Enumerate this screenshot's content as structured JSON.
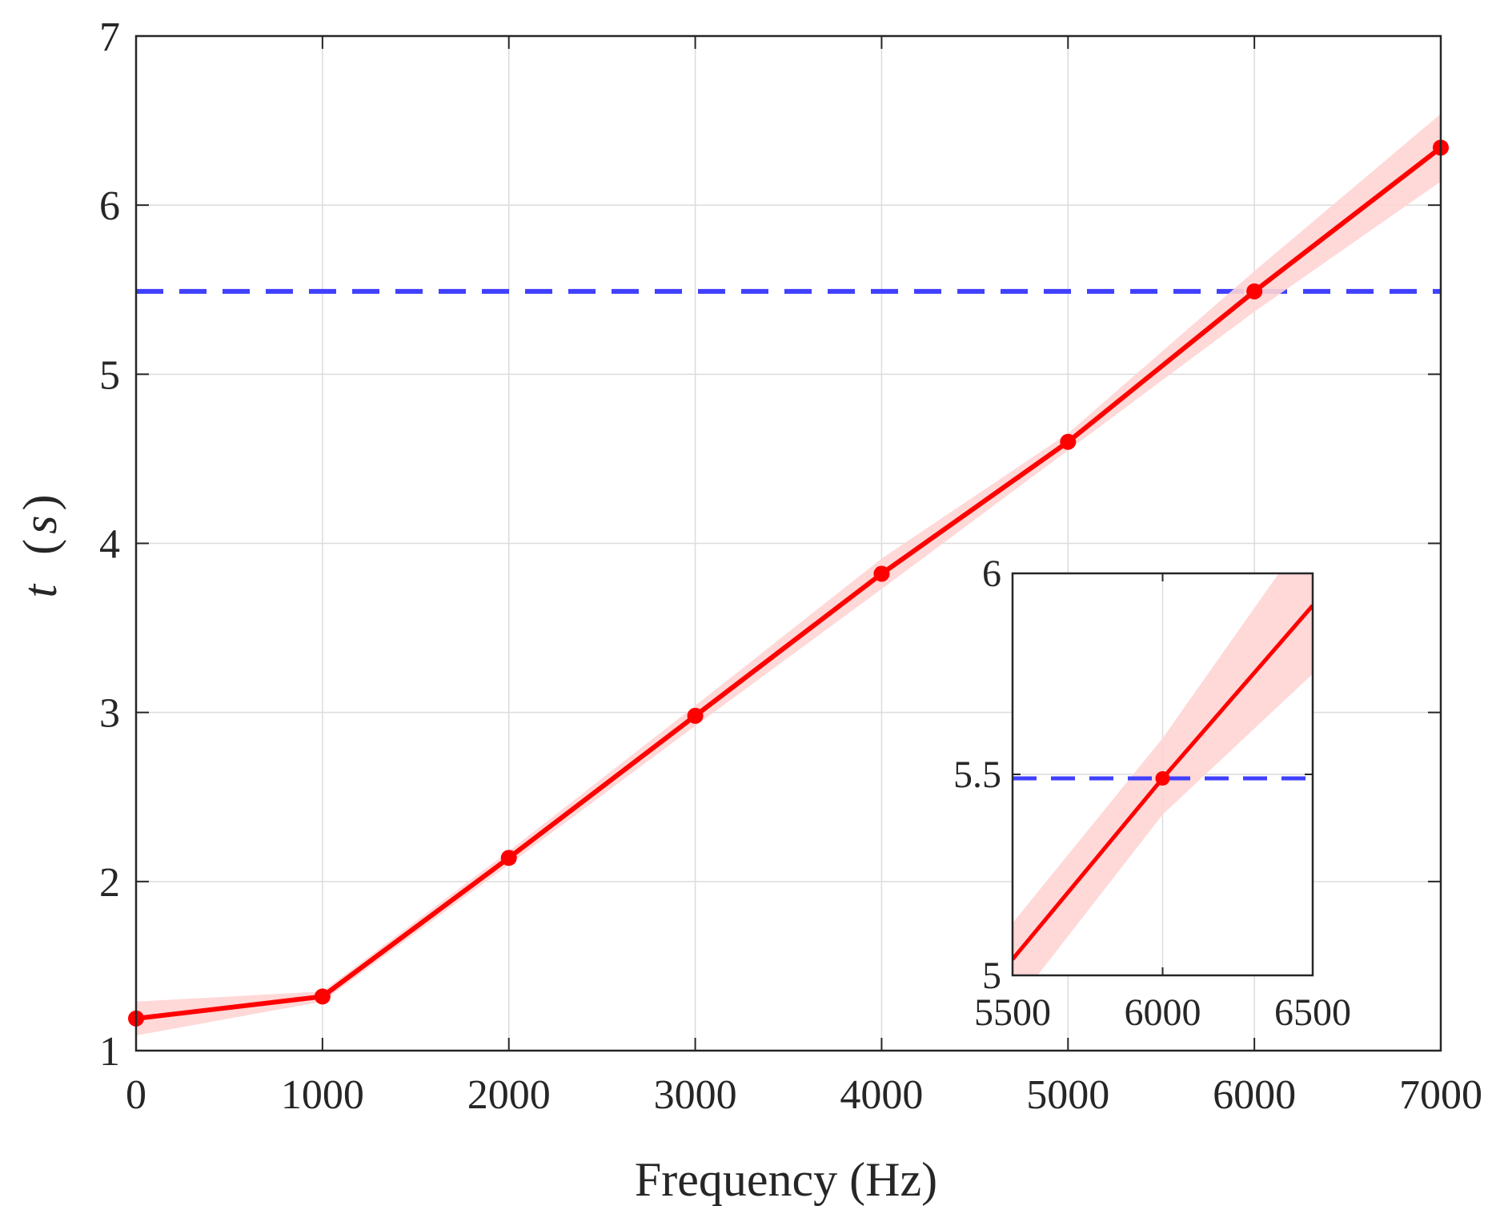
{
  "chart_data": [
    {
      "type": "line",
      "xlabel": "Frequency (Hz)",
      "ylabel": {
        "var": "t",
        "unit": "s"
      },
      "xlim": [
        0,
        7000
      ],
      "ylim": [
        1,
        7
      ],
      "xticks": [
        "0",
        "1000",
        "2000",
        "3000",
        "4000",
        "5000",
        "6000",
        "7000"
      ],
      "yticks": [
        "1",
        "2",
        "3",
        "4",
        "5",
        "6",
        "7"
      ],
      "grid": true,
      "series": [
        {
          "x": [
            0,
            1000,
            2000,
            3000,
            4000,
            5000,
            6000,
            7000
          ],
          "values": [
            1.19,
            1.32,
            2.14,
            2.98,
            3.82,
            4.6,
            5.49,
            6.34
          ],
          "band_halfwidth": [
            0.1,
            0.03,
            0.04,
            0.06,
            0.09,
            0.05,
            0.12,
            0.2
          ],
          "color": "#ff0000",
          "band_color": "#ffd4d4",
          "markers": true
        }
      ],
      "reference_line": {
        "y": 5.49,
        "color": "#4040ff",
        "style": "dashed"
      }
    },
    {
      "type": "line",
      "inset": true,
      "xlim": [
        5500,
        6500
      ],
      "ylim": [
        5,
        6
      ],
      "xticks": [
        "5500",
        "6000",
        "6500"
      ],
      "yticks": [
        "5",
        "5.5",
        "6"
      ],
      "grid": true,
      "series": [
        {
          "x": [
            5500,
            6000,
            6500
          ],
          "values": [
            5.04,
            5.49,
            5.92
          ],
          "band": {
            "x": [
              5500,
              6000,
              6500
            ],
            "low": [
              4.92,
              5.4,
              5.75
            ],
            "high": [
              5.13,
              5.59,
              6.12
            ]
          },
          "marker_x": [
            6000
          ],
          "marker_values": [
            5.49
          ],
          "color": "#ff0000",
          "band_color": "#ffd4d4"
        }
      ],
      "reference_line": {
        "y": 5.49,
        "color": "#4040ff",
        "style": "dashed"
      }
    }
  ]
}
